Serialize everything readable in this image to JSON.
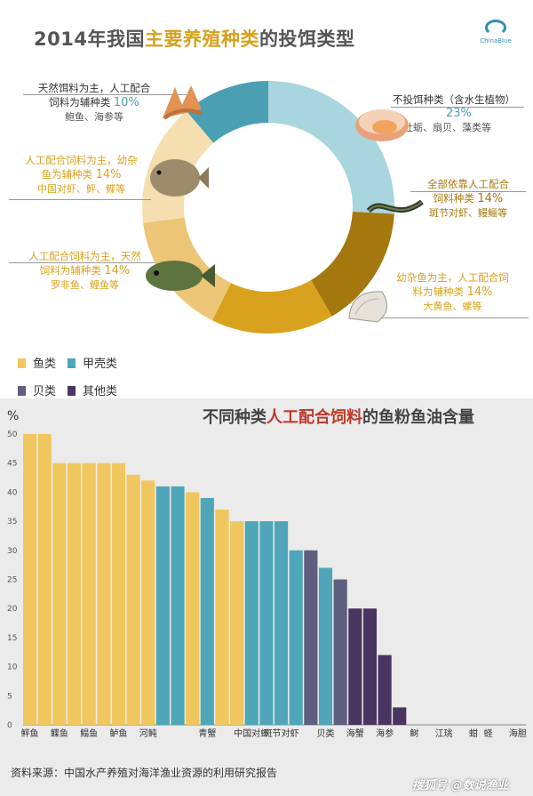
{
  "donut": {
    "title_pre": "2014年我国",
    "title_hl": "主要养殖种类",
    "title_post": "的投饵类型",
    "logo_text": "ChinaBlue",
    "slices": [
      {
        "line1": "不投饵种类（含水生植物）",
        "line2": "",
        "pct": "23%",
        "species": "牡蛎、扇贝、藻类等",
        "value": 23,
        "color": "#a9d5de",
        "text_color": "#333"
      },
      {
        "line1": "全部依靠人工配合",
        "line2": "饲料种类",
        "pct": "14%",
        "species": "斑节对虾、鳗鲡等",
        "value": 14,
        "color": "#a4780e",
        "text_color": "#a4780e"
      },
      {
        "line1": "幼杂鱼为主，人工配合饲",
        "line2": "料为辅种类",
        "pct": "14%",
        "species": "大黄鱼、螺等",
        "value": 14,
        "color": "#d9a21e",
        "text_color": "#d9a21e"
      },
      {
        "line1": "人工配合饲料为主，天然",
        "line2": "饲料为辅种类",
        "pct": "14%",
        "species": "罗非鱼、鲤鱼等",
        "value": 14,
        "color": "#ecc577",
        "text_color": "#d9a21e"
      },
      {
        "line1": "人工配合饲料为主，幼杂",
        "line2": "鱼为辅种类",
        "pct": "14%",
        "species": "中国对虾、鲆、鲽等",
        "value": 14,
        "color": "#f5dfb0",
        "text_color": "#d9a21e"
      },
      {
        "line1": "天然饵料为主，人工配合",
        "line2": "饲料为辅种类",
        "pct": "10%",
        "species": "鲍鱼、海参等",
        "value": 10,
        "color": "#4b9fb3",
        "text_color": "#333"
      }
    ]
  },
  "legend": [
    {
      "label": "鱼类",
      "color": "#f0c75e"
    },
    {
      "label": "甲壳类",
      "color": "#4fa6b8"
    },
    {
      "label": "贝类",
      "color": "#5e5e7e"
    },
    {
      "label": "其他类",
      "color": "#4a3560"
    }
  ],
  "chart_title_pre": "不同种类",
  "chart_title_hl": "人工配合饲料",
  "chart_title_post": "的鱼粉鱼油含量",
  "unit": "%",
  "chart_data": {
    "type": "bar",
    "title": "不同种类人工配合饲料的鱼粉鱼油含量",
    "ylabel": "%",
    "ylim": [
      0,
      50
    ],
    "yticks": [
      0,
      5,
      10,
      15,
      20,
      25,
      30,
      35,
      40,
      45,
      50
    ],
    "grid": false,
    "categories": [
      "鲆鱼",
      "",
      "鲽鱼",
      "",
      "鳎鱼",
      "",
      "鲈鱼",
      "",
      "河鲀",
      "",
      "",
      "",
      "青蟹",
      "",
      "",
      "中国对虾",
      "",
      "斑节对虾",
      "",
      "",
      "贝类",
      "",
      "海蟹",
      "",
      "海参",
      "",
      "鲥",
      "",
      "江珧",
      "",
      "蚶",
      "蛏",
      "",
      "海胆"
    ],
    "values": [
      50,
      50,
      45,
      45,
      45,
      45,
      45,
      43,
      42,
      41,
      41,
      40,
      39,
      37,
      35,
      35,
      35,
      35,
      30,
      30,
      27,
      25,
      20,
      20,
      12,
      3,
      0,
      0,
      0,
      0,
      0,
      0,
      0,
      0
    ],
    "groups": [
      "fish",
      "fish",
      "fish",
      "fish",
      "fish",
      "fish",
      "fish",
      "fish",
      "fish",
      "crust",
      "crust",
      "fish",
      "crust",
      "fish",
      "fish",
      "crust",
      "crust",
      "crust",
      "crust",
      "shell",
      "crust",
      "shell",
      "other",
      "other",
      "other",
      "other",
      "other",
      "other",
      "other",
      "other",
      "other",
      "other",
      "other",
      "other"
    ]
  },
  "source": "资料来源：中国水产养殖对海洋渔业资源的利用研究报告",
  "watermark": "搜狐号 @数说渔业"
}
